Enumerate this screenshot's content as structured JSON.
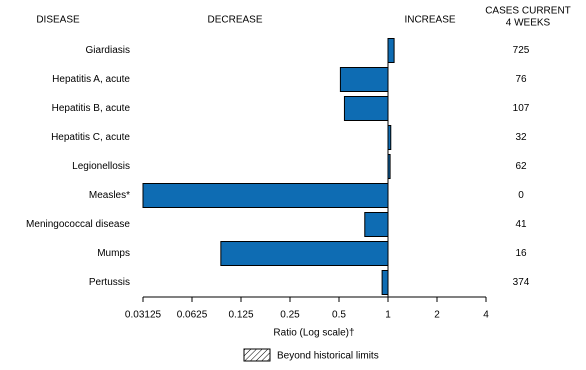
{
  "chart_data": {
    "type": "bar",
    "orientation": "horizontal",
    "headers": {
      "disease": "DISEASE",
      "decrease": "DECREASE",
      "increase": "INCREASE",
      "cases": [
        "CASES CURRENT",
        "4 WEEKS"
      ]
    },
    "categories": [
      "Giardiasis",
      "Hepatitis A, acute",
      "Hepatitis B, acute",
      "Hepatitis C, acute",
      "Legionellosis",
      "Measles*",
      "Meningococcal disease",
      "Mumps",
      "Pertussis"
    ],
    "values": [
      1.09,
      0.51,
      0.54,
      1.04,
      1.03,
      0.03125,
      0.72,
      0.094,
      0.92
    ],
    "cases": [
      725,
      76,
      107,
      32,
      62,
      0,
      41,
      16,
      374
    ],
    "color": "#0e6cb3",
    "x_label": "Ratio (Log scale)†",
    "log_base": 2,
    "xlim": [
      0.03125,
      4
    ],
    "xticks": [
      0.03125,
      0.0625,
      0.125,
      0.25,
      0.5,
      1,
      2,
      4
    ],
    "legend": {
      "label": "Beyond historical limits"
    }
  }
}
